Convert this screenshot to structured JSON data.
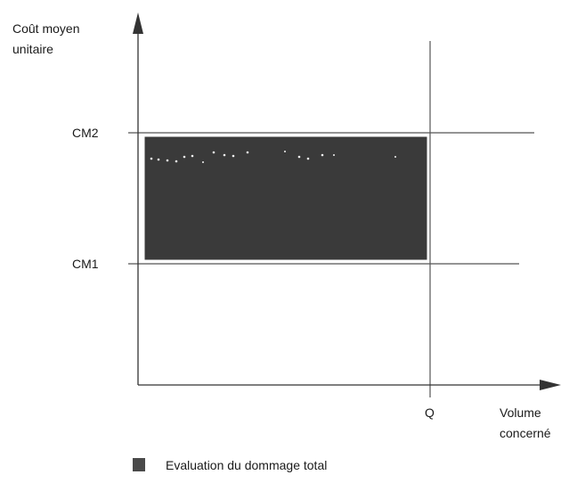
{
  "y_axis": {
    "label_line1": "Coût moyen",
    "label_line2": "unitaire"
  },
  "x_axis": {
    "label_line1": "Volume",
    "label_line2": "concerné"
  },
  "levels": {
    "cm2": "CM2",
    "cm1": "CM1"
  },
  "quantity": {
    "label": "Q"
  },
  "legend": {
    "label": "Evaluation du dommage total"
  },
  "colors": {
    "area_fill": "#3a3a3a",
    "axis": "#333333",
    "reference_lines": "#555555"
  }
}
